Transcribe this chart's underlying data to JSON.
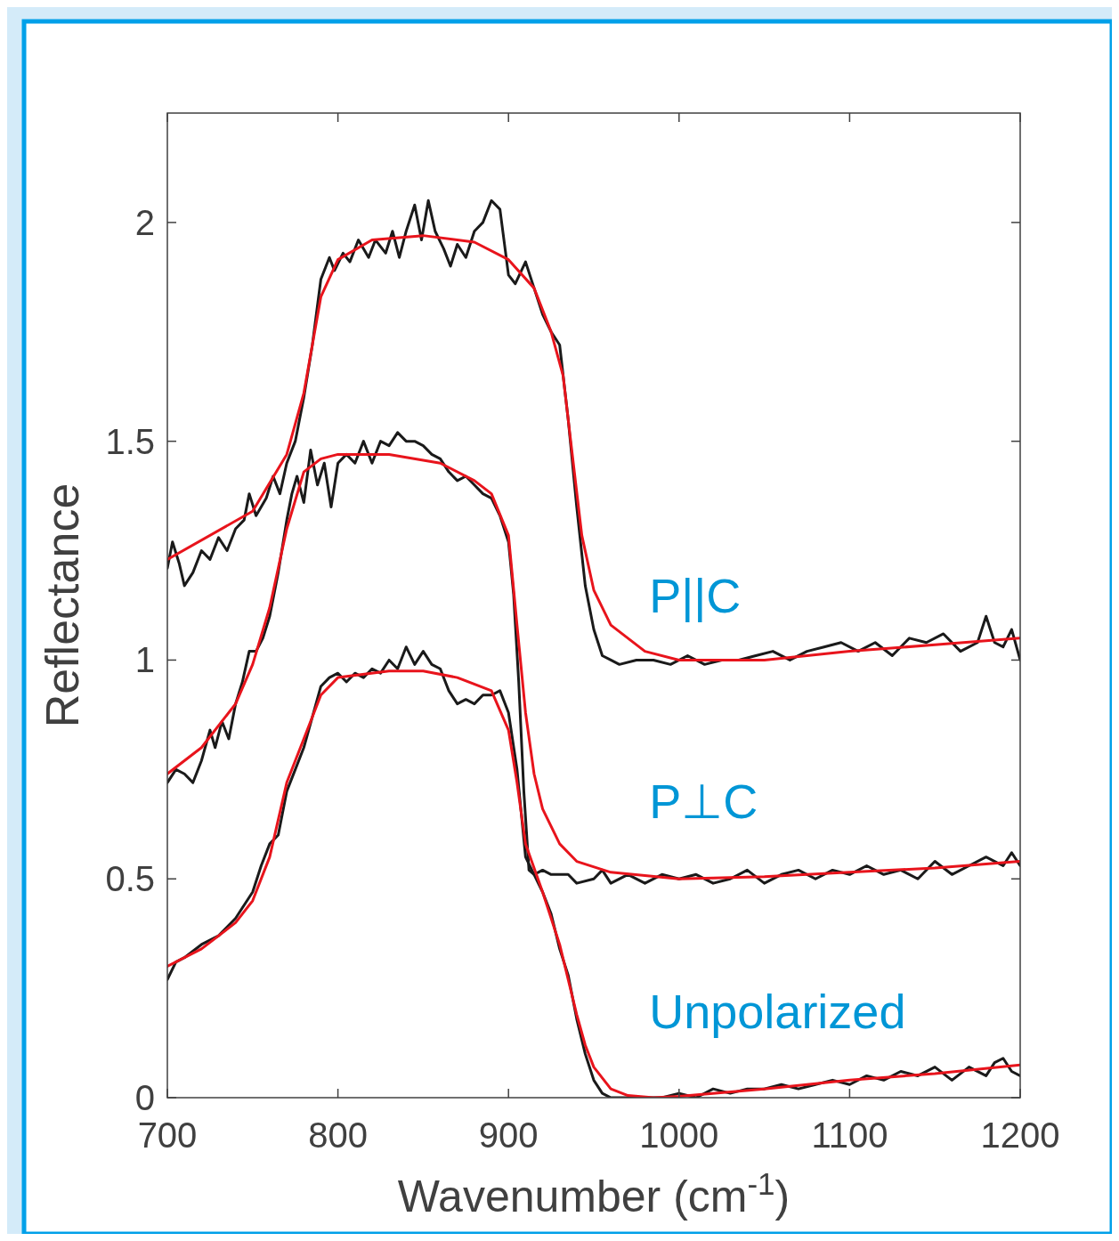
{
  "chart_data": {
    "type": "line",
    "xlabel": "Wavenumber (cm$^{-1}$)",
    "ylabel": "Reflectance",
    "xlim": [
      700,
      1200
    ],
    "ylim": [
      0,
      2.25
    ],
    "xticks": [
      700,
      800,
      900,
      1000,
      1100,
      1200
    ],
    "yticks": [
      0,
      0.5,
      1,
      1.5,
      2
    ],
    "grid": false,
    "line_style": "solid",
    "series": [
      {
        "color": "#1a1a1a",
        "x": [
          700,
          703,
          707,
          710,
          715,
          720,
          725,
          730,
          735,
          740,
          745,
          748,
          752,
          758,
          762,
          766,
          770,
          775,
          780,
          785,
          790,
          795,
          798,
          803,
          807,
          812,
          818,
          822,
          828,
          832,
          836,
          840,
          845,
          849,
          853,
          857,
          862,
          866,
          870,
          875,
          880,
          885,
          890,
          895,
          900,
          904,
          910,
          915,
          920,
          925,
          930,
          935,
          940,
          945,
          950,
          955,
          960,
          965,
          975,
          985,
          995,
          1005,
          1015,
          1025,
          1035,
          1045,
          1055,
          1065,
          1075,
          1085,
          1095,
          1105,
          1115,
          1125,
          1135,
          1145,
          1155,
          1165,
          1175,
          1180,
          1185,
          1190,
          1195,
          1200
        ],
        "values": [
          1.21,
          1.27,
          1.22,
          1.17,
          1.2,
          1.25,
          1.23,
          1.28,
          1.25,
          1.3,
          1.32,
          1.38,
          1.33,
          1.37,
          1.42,
          1.38,
          1.45,
          1.5,
          1.6,
          1.72,
          1.87,
          1.92,
          1.89,
          1.93,
          1.91,
          1.96,
          1.92,
          1.96,
          1.93,
          1.98,
          1.92,
          1.98,
          2.04,
          1.96,
          2.05,
          1.98,
          1.94,
          1.9,
          1.95,
          1.92,
          1.98,
          2.0,
          2.05,
          2.03,
          1.88,
          1.86,
          1.91,
          1.85,
          1.79,
          1.75,
          1.72,
          1.55,
          1.35,
          1.17,
          1.07,
          1.01,
          1.0,
          0.99,
          1.0,
          1.0,
          0.99,
          1.01,
          0.99,
          1.0,
          1.0,
          1.01,
          1.02,
          1.0,
          1.02,
          1.03,
          1.04,
          1.02,
          1.04,
          1.01,
          1.05,
          1.04,
          1.06,
          1.02,
          1.04,
          1.1,
          1.04,
          1.03,
          1.07,
          1.0
        ]
      },
      {
        "color": "#e8141c",
        "x": [
          700,
          750,
          770,
          780,
          790,
          800,
          820,
          850,
          880,
          900,
          915,
          925,
          932,
          938,
          943,
          950,
          960,
          980,
          1000,
          1050,
          1100,
          1150,
          1200
        ],
        "values": [
          1.23,
          1.34,
          1.47,
          1.61,
          1.83,
          1.915,
          1.96,
          1.97,
          1.955,
          1.915,
          1.85,
          1.75,
          1.65,
          1.45,
          1.285,
          1.16,
          1.08,
          1.02,
          1.0,
          1.0,
          1.02,
          1.035,
          1.05
        ]
      },
      {
        "color": "#1a1a1a",
        "x": [
          700,
          705,
          710,
          715,
          720,
          725,
          728,
          732,
          736,
          740,
          744,
          748,
          752,
          756,
          760,
          765,
          770,
          773,
          776,
          780,
          784,
          788,
          792,
          796,
          800,
          805,
          810,
          815,
          820,
          825,
          830,
          835,
          840,
          845,
          850,
          855,
          860,
          865,
          870,
          875,
          880,
          885,
          890,
          895,
          900,
          903,
          906,
          909,
          912,
          915,
          920,
          925,
          935,
          940,
          950,
          955,
          960,
          970,
          980,
          990,
          1000,
          1010,
          1020,
          1030,
          1040,
          1050,
          1060,
          1070,
          1080,
          1090,
          1100,
          1110,
          1120,
          1130,
          1140,
          1150,
          1160,
          1170,
          1180,
          1190,
          1195,
          1200
        ],
        "values": [
          0.72,
          0.75,
          0.74,
          0.72,
          0.77,
          0.84,
          0.8,
          0.86,
          0.82,
          0.9,
          0.95,
          1.02,
          1.02,
          1.05,
          1.1,
          1.2,
          1.32,
          1.38,
          1.42,
          1.36,
          1.48,
          1.4,
          1.45,
          1.35,
          1.45,
          1.47,
          1.45,
          1.5,
          1.45,
          1.5,
          1.49,
          1.52,
          1.5,
          1.5,
          1.49,
          1.47,
          1.46,
          1.43,
          1.41,
          1.42,
          1.4,
          1.38,
          1.37,
          1.33,
          1.27,
          1.15,
          0.95,
          0.7,
          0.52,
          0.51,
          0.52,
          0.51,
          0.51,
          0.49,
          0.5,
          0.52,
          0.49,
          0.51,
          0.49,
          0.51,
          0.5,
          0.51,
          0.49,
          0.5,
          0.52,
          0.49,
          0.51,
          0.52,
          0.5,
          0.52,
          0.51,
          0.53,
          0.51,
          0.52,
          0.5,
          0.54,
          0.51,
          0.53,
          0.55,
          0.53,
          0.56,
          0.53
        ]
      },
      {
        "color": "#e8141c",
        "x": [
          700,
          720,
          740,
          750,
          760,
          770,
          780,
          790,
          800,
          830,
          860,
          880,
          890,
          900,
          905,
          910,
          915,
          920,
          930,
          940,
          960,
          1000,
          1050,
          1100,
          1150,
          1200
        ],
        "values": [
          0.74,
          0.8,
          0.9,
          0.99,
          1.12,
          1.3,
          1.43,
          1.46,
          1.47,
          1.47,
          1.45,
          1.41,
          1.38,
          1.285,
          1.08,
          0.88,
          0.74,
          0.66,
          0.58,
          0.54,
          0.515,
          0.5,
          0.505,
          0.515,
          0.525,
          0.54
        ]
      },
      {
        "color": "#1a1a1a",
        "x": [
          700,
          705,
          710,
          720,
          730,
          740,
          745,
          750,
          755,
          760,
          765,
          770,
          775,
          780,
          785,
          790,
          795,
          800,
          805,
          810,
          815,
          820,
          825,
          830,
          835,
          840,
          845,
          850,
          855,
          860,
          865,
          870,
          875,
          880,
          885,
          890,
          895,
          900,
          905,
          910,
          915,
          920,
          925,
          930,
          935,
          940,
          945,
          950,
          955,
          960,
          970,
          980,
          990,
          1000,
          1010,
          1020,
          1030,
          1040,
          1050,
          1060,
          1070,
          1080,
          1090,
          1100,
          1110,
          1120,
          1130,
          1140,
          1150,
          1160,
          1170,
          1180,
          1185,
          1190,
          1195,
          1200
        ],
        "values": [
          0.27,
          0.31,
          0.32,
          0.35,
          0.37,
          0.41,
          0.44,
          0.47,
          0.53,
          0.58,
          0.6,
          0.7,
          0.75,
          0.8,
          0.87,
          0.94,
          0.96,
          0.97,
          0.95,
          0.97,
          0.96,
          0.98,
          0.97,
          1.0,
          0.98,
          1.03,
          0.99,
          1.02,
          0.99,
          0.98,
          0.93,
          0.9,
          0.91,
          0.9,
          0.92,
          0.92,
          0.93,
          0.88,
          0.75,
          0.55,
          0.51,
          0.47,
          0.42,
          0.34,
          0.28,
          0.18,
          0.1,
          0.04,
          0.01,
          0.0,
          0.0,
          0.0,
          0.0,
          0.01,
          0.0,
          0.02,
          0.01,
          0.02,
          0.02,
          0.03,
          0.02,
          0.03,
          0.04,
          0.03,
          0.05,
          0.04,
          0.06,
          0.05,
          0.07,
          0.04,
          0.07,
          0.05,
          0.08,
          0.09,
          0.06,
          0.05
        ]
      },
      {
        "color": "#e8141c",
        "x": [
          700,
          720,
          740,
          750,
          760,
          770,
          780,
          790,
          800,
          830,
          850,
          870,
          890,
          900,
          905,
          910,
          920,
          930,
          940,
          945,
          950,
          960,
          970,
          985,
          1000,
          1050,
          1100,
          1150,
          1200
        ],
        "values": [
          0.3,
          0.34,
          0.4,
          0.45,
          0.55,
          0.72,
          0.82,
          0.92,
          0.96,
          0.975,
          0.975,
          0.96,
          0.93,
          0.84,
          0.72,
          0.58,
          0.47,
          0.35,
          0.19,
          0.12,
          0.07,
          0.02,
          0.005,
          0.0,
          0.003,
          0.02,
          0.04,
          0.055,
          0.075
        ]
      }
    ],
    "annotations": [
      "P||C",
      "P⊥C",
      "Unpolarized"
    ]
  }
}
